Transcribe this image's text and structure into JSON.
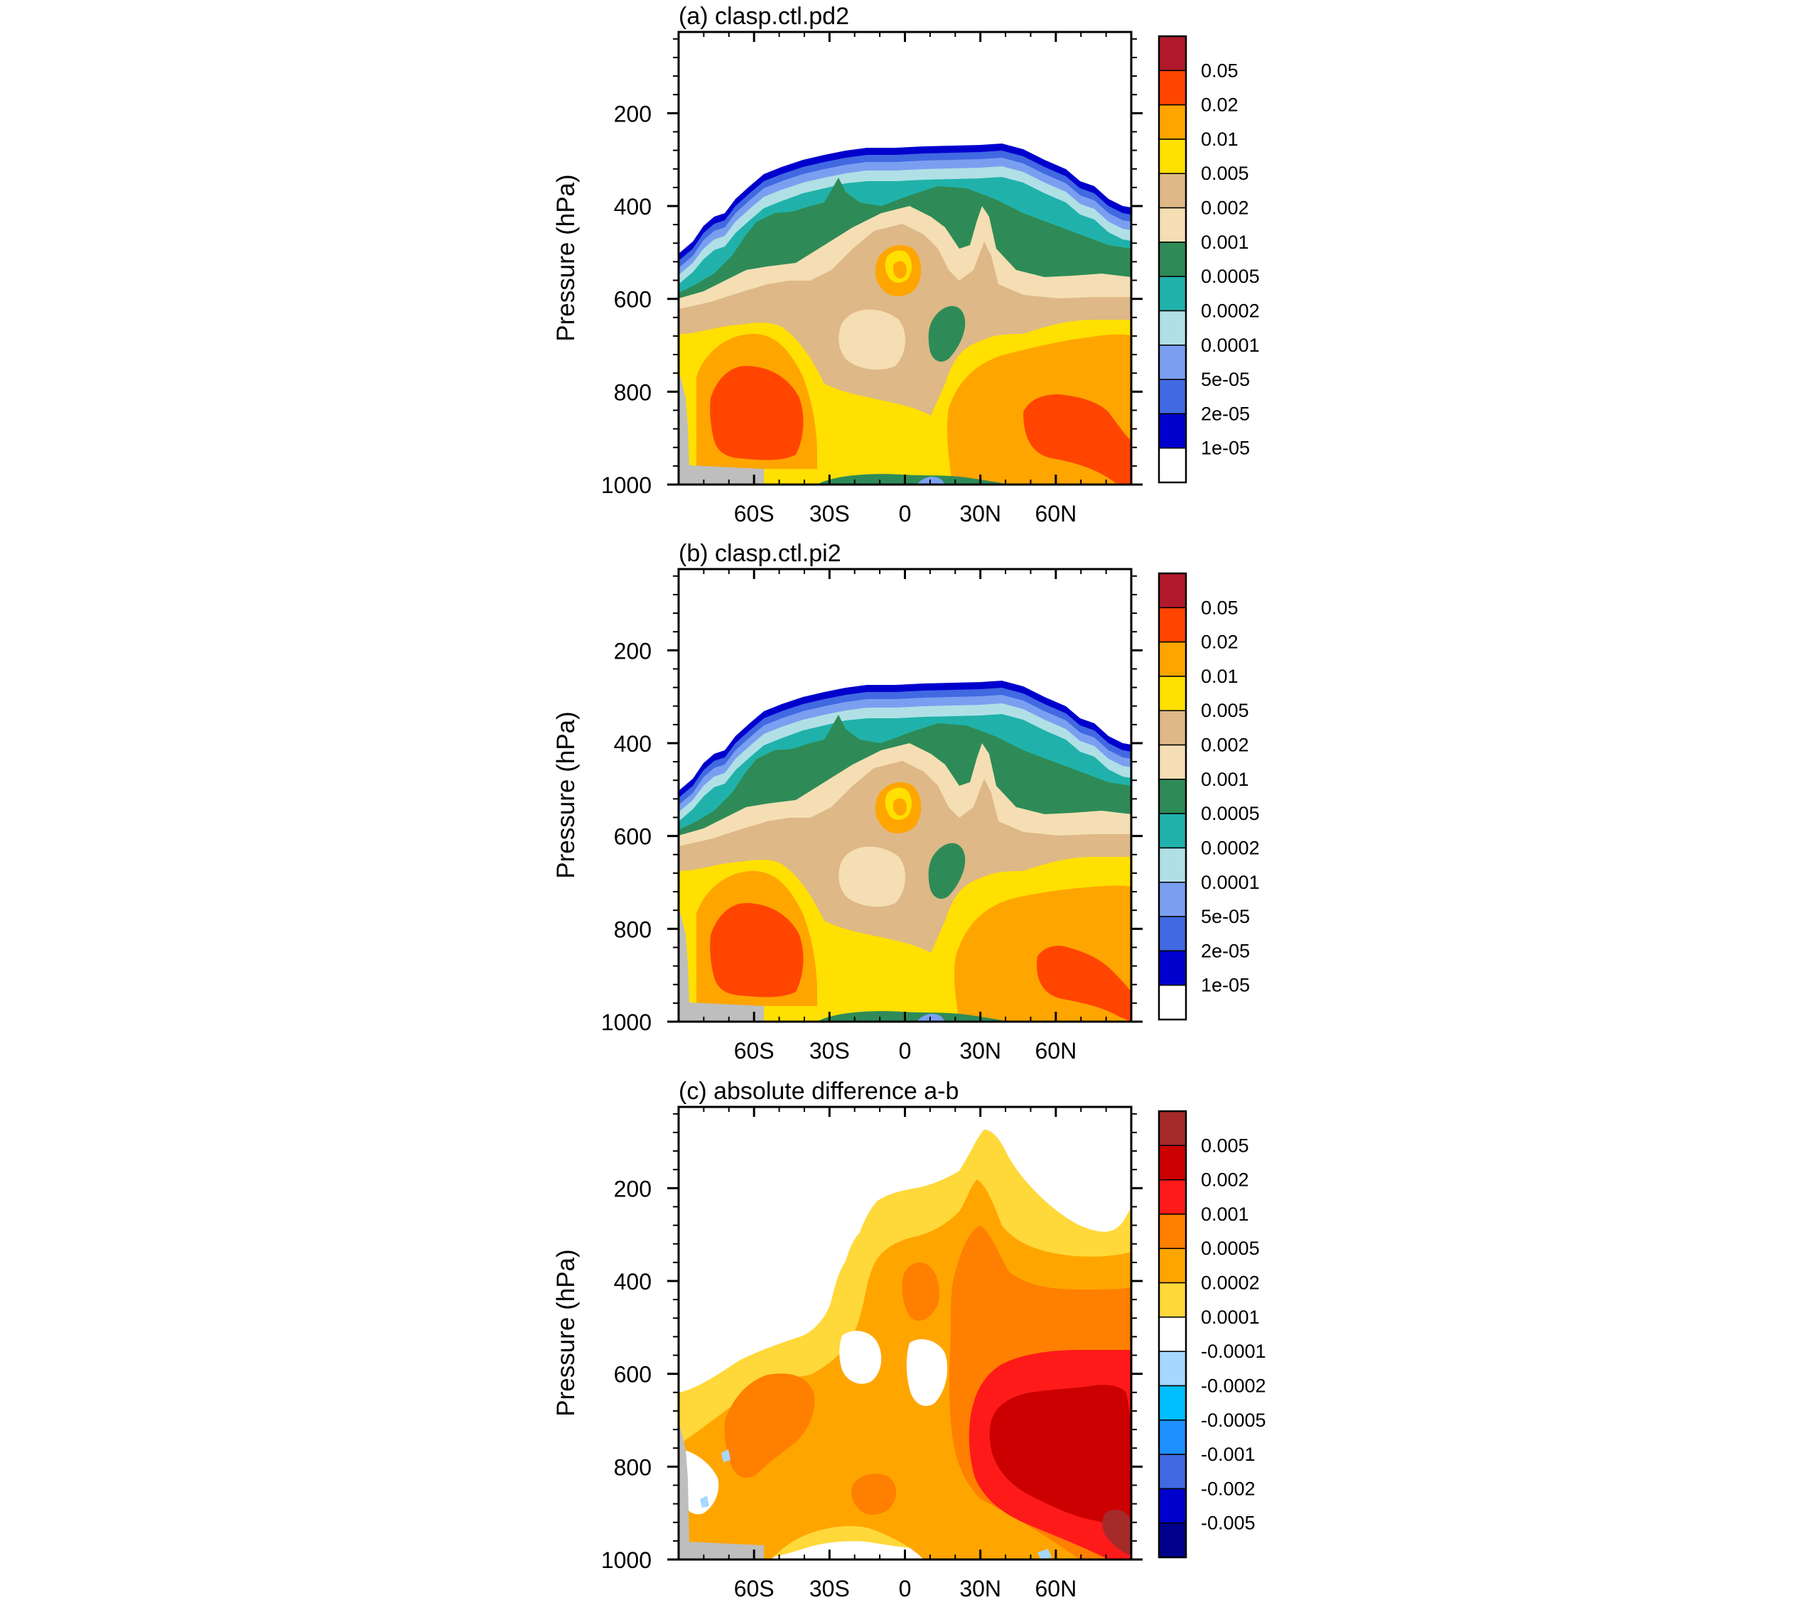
{
  "chart_data": [
    {
      "type": "heatmap",
      "title": "(a) clasp.ctl.pd2",
      "ylabel": "Pressure (hPa)",
      "xlabel": "",
      "x_ticks": [
        "60S",
        "30S",
        "0",
        "30N",
        "60N"
      ],
      "x_values": [
        -60,
        -30,
        0,
        30,
        60
      ],
      "xlim": [
        -90,
        90
      ],
      "y_ticks": [
        "200",
        "400",
        "600",
        "800",
        "1000"
      ],
      "y_values": [
        200,
        400,
        600,
        800,
        1000
      ],
      "ylim": [
        25,
        1000
      ],
      "colorbar": {
        "labels": [
          "0.05",
          "0.02",
          "0.01",
          "0.005",
          "0.002",
          "0.001",
          "0.0005",
          "0.0002",
          "0.0001",
          "5e-05",
          "2e-05",
          "1e-05"
        ],
        "colors": [
          "#b2182b",
          "#ff4500",
          "#ffa500",
          "#ffe000",
          "#deb887",
          "#f5deb3",
          "#2e8b57",
          "#20b2aa",
          "#b0e0e6",
          "#7b9ff0",
          "#4169e1",
          "#0000cd",
          "#ffffff"
        ]
      }
    },
    {
      "type": "heatmap",
      "title": "(b) clasp.ctl.pi2",
      "ylabel": "Pressure (hPa)",
      "xlabel": "",
      "x_ticks": [
        "60S",
        "30S",
        "0",
        "30N",
        "60N"
      ],
      "x_values": [
        -60,
        -30,
        0,
        30,
        60
      ],
      "xlim": [
        -90,
        90
      ],
      "y_ticks": [
        "200",
        "400",
        "600",
        "800",
        "1000"
      ],
      "y_values": [
        200,
        400,
        600,
        800,
        1000
      ],
      "ylim": [
        25,
        1000
      ],
      "colorbar": {
        "labels": [
          "0.05",
          "0.02",
          "0.01",
          "0.005",
          "0.002",
          "0.001",
          "0.0005",
          "0.0002",
          "0.0001",
          "5e-05",
          "2e-05",
          "1e-05"
        ],
        "colors": [
          "#b2182b",
          "#ff4500",
          "#ffa500",
          "#ffe000",
          "#deb887",
          "#f5deb3",
          "#2e8b57",
          "#20b2aa",
          "#b0e0e6",
          "#7b9ff0",
          "#4169e1",
          "#0000cd",
          "#ffffff"
        ]
      }
    },
    {
      "type": "heatmap",
      "title": "(c) absolute difference a-b",
      "ylabel": "Pressure (hPa)",
      "xlabel": "",
      "x_ticks": [
        "60S",
        "30S",
        "0",
        "30N",
        "60N"
      ],
      "x_values": [
        -60,
        -30,
        0,
        30,
        60
      ],
      "xlim": [
        -90,
        90
      ],
      "y_ticks": [
        "200",
        "400",
        "600",
        "800",
        "1000"
      ],
      "y_values": [
        200,
        400,
        600,
        800,
        1000
      ],
      "ylim": [
        25,
        1000
      ],
      "colorbar": {
        "labels": [
          "0.005",
          "0.002",
          "0.001",
          "0.0005",
          "0.0002",
          "0.0001",
          "-0.0001",
          "-0.0002",
          "-0.0005",
          "-0.001",
          "-0.002",
          "-0.005"
        ],
        "colors": [
          "#a52a2a",
          "#cc0000",
          "#ff1a1a",
          "#ff7f00",
          "#ffa500",
          "#ffd83a",
          "#ffffff",
          "#a6d8ff",
          "#00bfff",
          "#1e90ff",
          "#4169e1",
          "#0000cd",
          "#00008b"
        ]
      }
    }
  ]
}
